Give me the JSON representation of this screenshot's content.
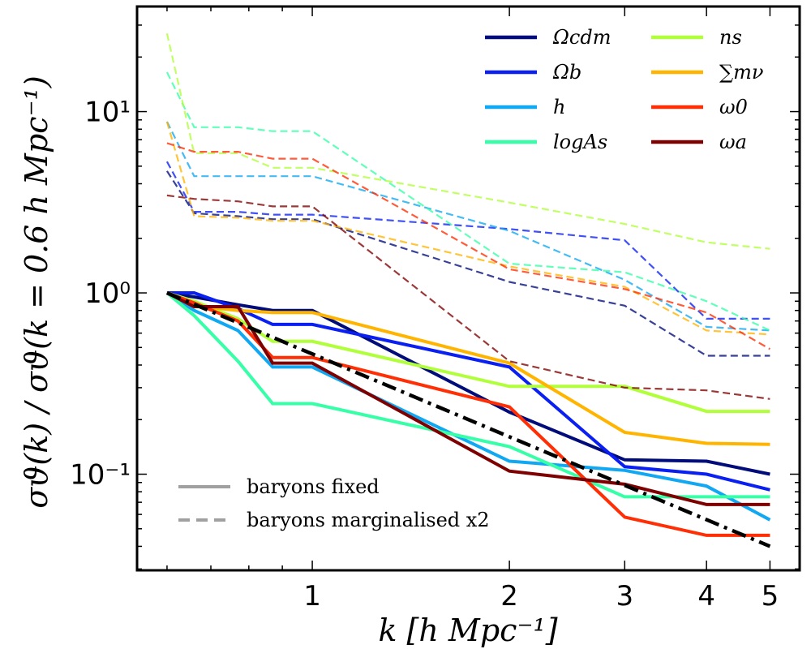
{
  "chart_data": {
    "type": "line",
    "xscale": "log",
    "yscale": "log",
    "xlim": [
      0.54,
      5.55
    ],
    "ylim": [
      0.0295,
      38
    ],
    "xticks": [
      1,
      2,
      3,
      4,
      5
    ],
    "xtick_labels": [
      "1",
      "2",
      "3",
      "4",
      "5"
    ],
    "yticks": [
      0.1,
      1,
      10
    ],
    "ytick_labels": [
      "10⁻¹",
      "10⁰",
      "10¹"
    ],
    "xlabel": "k [h Mpc⁻¹]",
    "ylabel": "σϑ(k) / σϑ(k = 0.6 h Mpc⁻¹)",
    "x": [
      0.6,
      0.66,
      0.77,
      0.87,
      1.0,
      2.0,
      3.0,
      4.0,
      5.0
    ],
    "series": [
      {
        "name": "Ωcdm",
        "color": "#000c7a",
        "style": "solid",
        "values": [
          1.0,
          0.95,
          0.86,
          0.8,
          0.8,
          0.22,
          0.12,
          0.118,
          0.1
        ]
      },
      {
        "name": "Ωcdm",
        "color": "#000c7a",
        "style": "dashed",
        "values": [
          4.7,
          2.75,
          2.65,
          2.55,
          2.55,
          1.15,
          0.85,
          0.45,
          0.45
        ]
      },
      {
        "name": "Ωb",
        "color": "#0a1ff2",
        "style": "solid",
        "values": [
          1.0,
          1.0,
          0.82,
          0.67,
          0.67,
          0.39,
          0.11,
          0.1,
          0.082
        ]
      },
      {
        "name": "Ωb",
        "color": "#0a1ff2",
        "style": "dashed",
        "values": [
          5.3,
          2.8,
          2.8,
          2.7,
          2.7,
          2.25,
          1.95,
          0.72,
          0.72
        ]
      },
      {
        "name": "h",
        "color": "#10a8f2",
        "style": "solid",
        "values": [
          1.0,
          0.8,
          0.62,
          0.39,
          0.39,
          0.118,
          0.105,
          0.086,
          0.056
        ]
      },
      {
        "name": "h",
        "color": "#10a8f2",
        "style": "dashed",
        "values": [
          8.8,
          4.4,
          4.4,
          4.4,
          4.4,
          2.2,
          1.18,
          0.65,
          0.62
        ]
      },
      {
        "name": "logAs",
        "color": "#36ffa8",
        "style": "solid",
        "values": [
          1.0,
          0.75,
          0.42,
          0.245,
          0.245,
          0.142,
          0.075,
          0.075,
          0.075
        ]
      },
      {
        "name": "logAs",
        "color": "#36ffa8",
        "style": "dashed",
        "values": [
          16.5,
          8.2,
          8.2,
          7.8,
          7.8,
          1.45,
          1.3,
          0.9,
          0.62
        ]
      },
      {
        "name": "ns",
        "color": "#b0ff3a",
        "style": "solid",
        "values": [
          1.0,
          0.9,
          0.72,
          0.54,
          0.54,
          0.305,
          0.305,
          0.222,
          0.222
        ]
      },
      {
        "name": "ns",
        "color": "#b0ff3a",
        "style": "dashed",
        "values": [
          27.0,
          5.9,
          5.9,
          4.9,
          4.9,
          3.15,
          2.4,
          1.9,
          1.75
        ]
      },
      {
        "name": "∑mν",
        "color": "#ffb400",
        "style": "solid",
        "values": [
          1.0,
          0.85,
          0.8,
          0.78,
          0.78,
          0.41,
          0.17,
          0.148,
          0.146
        ]
      },
      {
        "name": "∑mν",
        "color": "#ffb400",
        "style": "dashed",
        "values": [
          8.8,
          2.65,
          2.6,
          2.5,
          2.5,
          1.4,
          1.08,
          0.62,
          0.59
        ]
      },
      {
        "name": "ω0",
        "color": "#ff2e04",
        "style": "solid",
        "values": [
          1.0,
          0.88,
          0.7,
          0.44,
          0.44,
          0.235,
          0.058,
          0.046,
          0.046
        ]
      },
      {
        "name": "ω0",
        "color": "#ff2e04",
        "style": "dashed",
        "values": [
          6.7,
          6.0,
          6.0,
          5.5,
          5.5,
          1.35,
          1.05,
          0.78,
          0.49
        ]
      },
      {
        "name": "ωa",
        "color": "#7f0000",
        "style": "solid",
        "values": [
          1.0,
          0.84,
          0.84,
          0.41,
          0.41,
          0.104,
          0.088,
          0.068,
          0.068
        ]
      },
      {
        "name": "ωa",
        "color": "#7f0000",
        "style": "dashed",
        "values": [
          3.45,
          3.3,
          3.2,
          3.0,
          3.0,
          0.42,
          0.3,
          0.29,
          0.26
        ]
      }
    ],
    "reference_line": {
      "style": "dashdot",
      "color": "#000000",
      "x": [
        0.6,
        5.0
      ],
      "values": [
        1.0,
        0.04
      ]
    },
    "legend": {
      "position": "top-right",
      "columns": 2,
      "entries": [
        {
          "label": "Ωcdm",
          "color": "#000c7a"
        },
        {
          "label": "Ωb",
          "color": "#0a1ff2"
        },
        {
          "label": "h",
          "color": "#10a8f2"
        },
        {
          "label": "logAs",
          "color": "#36ffa8"
        },
        {
          "label": "ns",
          "color": "#b0ff3a"
        },
        {
          "label": "∑mν",
          "color": "#ffb400"
        },
        {
          "label": "ω0",
          "color": "#ff2e04"
        },
        {
          "label": "ωa",
          "color": "#7f0000"
        }
      ]
    },
    "style_legend": {
      "position": "bottom-left",
      "entries": [
        {
          "label": "baryons fixed",
          "style": "solid",
          "color": "#a0a0a0"
        },
        {
          "label": "baryons marginalised x2",
          "style": "dashed",
          "color": "#a0a0a0"
        }
      ]
    }
  }
}
